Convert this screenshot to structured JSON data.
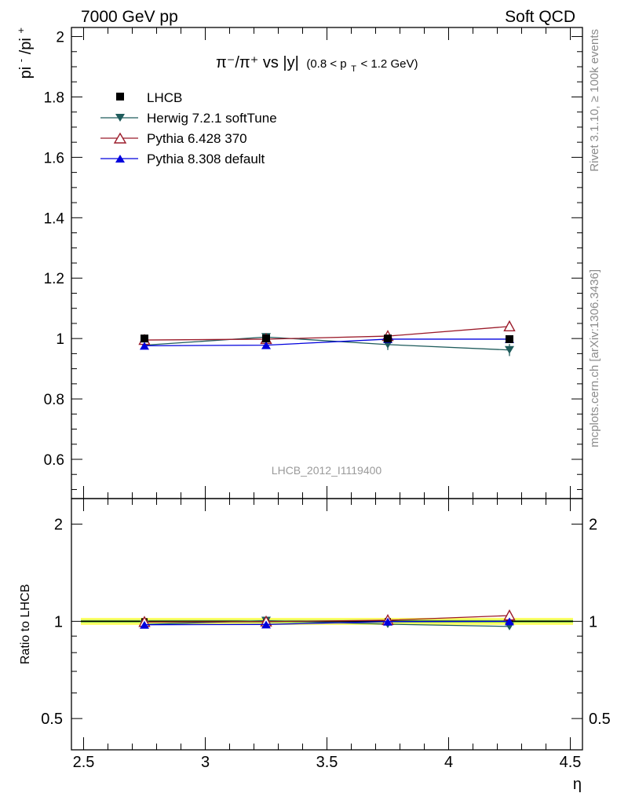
{
  "header": {
    "left": "7000 GeV pp",
    "right": "Soft QCD"
  },
  "side_text": {
    "rivet": "Rivet 3.1.10, ≥ 100k events",
    "mcplots": "mcplots.cern.ch [arXiv:1306.3436]"
  },
  "watermark": "LHCB_2012_I1119400",
  "colors": {
    "lhcb": "#000000",
    "herwig": "#1f5c5c",
    "pythia6": "#9b1b2a",
    "pythia8": "#0000dd",
    "band_outer": "#ffff66",
    "band_inner": "#99ee55"
  },
  "chart_data": [
    {
      "type": "scatter",
      "title_main": "π⁻/π⁺ vs |y|",
      "title_sub": "(0.8 < p",
      "title_sub_index": "T",
      "title_sub_tail": " < 1.2 GeV)",
      "ylabel_main": "pi",
      "ylabel_sup1": "-",
      "ylabel_mid": "/pi",
      "ylabel_sup2": "+",
      "xlim": [
        2.45,
        4.55
      ],
      "ylim": [
        0.47,
        2.03
      ],
      "yticks": [
        0.6,
        0.8,
        1,
        1.2,
        1.4,
        1.6,
        1.8,
        2
      ],
      "ytick_labels": [
        "0.6",
        "0.8",
        "1",
        "1.2",
        "1.4",
        "1.6",
        "1.8",
        "2"
      ],
      "x": [
        2.75,
        3.25,
        3.75,
        4.25
      ],
      "legend_position": "top-left",
      "series": [
        {
          "key": "lhcb",
          "name": "LHCB",
          "marker": "square",
          "values": [
            1.0,
            1.0,
            1.0,
            0.998
          ],
          "errors": [
            0.008,
            0.008,
            0.01,
            0.012
          ]
        },
        {
          "key": "herwig",
          "name": "Herwig 7.2.1 softTune",
          "marker": "triangle-down",
          "values": [
            0.978,
            1.005,
            0.98,
            0.962
          ],
          "errors": [
            0.01,
            0.01,
            0.018,
            0.02
          ]
        },
        {
          "key": "pythia6",
          "name": "Pythia 6.428 370",
          "marker": "triangle-up-open",
          "values": [
            0.995,
            0.998,
            1.008,
            1.04
          ],
          "errors": [
            0.008,
            0.008,
            0.012,
            0.014
          ]
        },
        {
          "key": "pythia8",
          "name": "Pythia 8.308 default",
          "marker": "triangle-up",
          "values": [
            0.976,
            0.978,
            0.998,
            0.998
          ],
          "errors": [
            0.008,
            0.008,
            0.01,
            0.012
          ]
        }
      ]
    },
    {
      "type": "scatter",
      "ylabel": "Ratio to LHCB",
      "xlabel": "η",
      "xlim": [
        2.45,
        4.55
      ],
      "ylim": [
        0.4,
        2.4
      ],
      "log_y": true,
      "yticks": [
        0.5,
        1,
        2
      ],
      "ytick_labels": [
        "0.5",
        "1",
        "2"
      ],
      "xticks": [
        2.5,
        3,
        3.5,
        4,
        4.5
      ],
      "xtick_labels": [
        "2.5",
        "3",
        "3.5",
        "4",
        "4.5"
      ],
      "x": [
        2.75,
        3.25,
        3.75,
        4.25
      ],
      "band": {
        "outer": [
          0.975,
          1.025
        ],
        "inner": [
          0.99,
          1.01
        ]
      },
      "series": [
        {
          "key": "herwig",
          "name": "Herwig 7.2.1 softTune",
          "values": [
            0.978,
            1.005,
            0.98,
            0.964
          ]
        },
        {
          "key": "pythia6",
          "name": "Pythia 6.428 370",
          "values": [
            0.995,
            0.998,
            1.008,
            1.042
          ]
        },
        {
          "key": "pythia8",
          "name": "Pythia 8.308 default",
          "values": [
            0.976,
            0.978,
            0.998,
            1.0
          ]
        }
      ]
    }
  ]
}
